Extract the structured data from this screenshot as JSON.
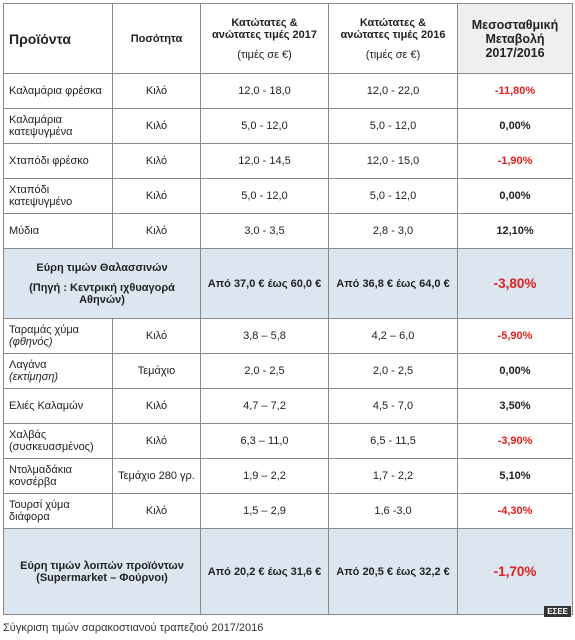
{
  "header": {
    "product": "Προϊόντα",
    "quantity": "Ποσότητα",
    "range_2017": "Κατώτατες & ανώτατες τιμές 2017",
    "range_2016": "Κατώτατες & ανώτατες τιμές 2016",
    "unit": "(τιμές σε €)",
    "change": "Μεσοσταθμική Μεταβολή 2017/2016"
  },
  "rows": [
    {
      "product": "Καλαμάρια φρέσκα",
      "quantity": "Κιλό",
      "range_2017": "12,0 - 18,0",
      "range_2016": "12,0 - 22,0",
      "change": "-11,80%"
    },
    {
      "product": "Καλαμάρια κατεψυγμένα",
      "quantity": "Κιλό",
      "range_2017": "5,0 - 12,0",
      "range_2016": "5,0 - 12,0",
      "change": "0,00%"
    },
    {
      "product": "Χταπόδι φρέσκο",
      "quantity": "Κιλό",
      "range_2017": "12,0 - 14,5",
      "range_2016": "12,0 - 15,0",
      "change": "-1,90%"
    },
    {
      "product": "Χταπόδι κατεψυγμένο",
      "quantity": "Κιλό",
      "range_2017": "5,0 - 12,0",
      "range_2016": "5,0 - 12,0",
      "change": "0,00%"
    },
    {
      "product": "Μύδια",
      "quantity": "Κιλό",
      "range_2017": "3,0 - 3,5",
      "range_2016": "2,8 - 3,0",
      "change": "12,10%"
    },
    {
      "label": "Εύρη τιμών Θαλασσινών",
      "source": "(Πηγή : Κεντρική ιχθυαγορά Αθηνών)",
      "range_2017": "Από 37,0 € έως 60,0 €",
      "range_2016": "Από 36,8 € έως 64,0 €",
      "change": "-3,80%"
    },
    {
      "product": "Ταραμάς χύμα",
      "note": "(φθηνός)",
      "quantity": "Κιλό",
      "range_2017": "3,8 – 5,8",
      "range_2016": "4,2 – 6,0",
      "change": "-5,90%"
    },
    {
      "product": "Λαγάνα",
      "note": "(εκτίμηση)",
      "quantity": "Τεμάχιο",
      "range_2017": "2,0 - 2,5",
      "range_2016": "2,0 - 2,5",
      "change": "0,00%"
    },
    {
      "product": "Ελιές Καλαμών",
      "quantity": "Κιλό",
      "range_2017": "4,7 – 7,2",
      "range_2016": "4,5 - 7,0",
      "change": "3,50%"
    },
    {
      "product": "Χαλβάς (συσκευασμένος)",
      "quantity": "Κιλό",
      "range_2017": "6,3 – 11,0",
      "range_2016": "6,5 - 11,5",
      "change": "-3,90%"
    },
    {
      "product": "Ντολμαδάκια κονσέρβα",
      "quantity": "Τεμάχιο 280 γρ.",
      "range_2017": "1,9 – 2,2",
      "range_2016": "1,7 - 2,2",
      "change": "5,10%"
    },
    {
      "product": "Τουρσί χύμα διάφορα",
      "quantity": "Κιλό",
      "range_2017": "1,5 – 2,9",
      "range_2016": "1,6 -3,0",
      "change": "-4,30%"
    },
    {
      "label": "Εύρη τιμών λοιπών προϊόντων (Supermarket – Φούρνοι)",
      "range_2017": "Από 20,2 € έως 31,6 €",
      "range_2016": "Από 20,5 € έως 32,2 €",
      "change": "-1,70%"
    }
  ],
  "badge": "ΕΣΕΕ",
  "caption": "Σύγκριση τιμών σαρακοστιανού τραπεζιού 2017/2016"
}
